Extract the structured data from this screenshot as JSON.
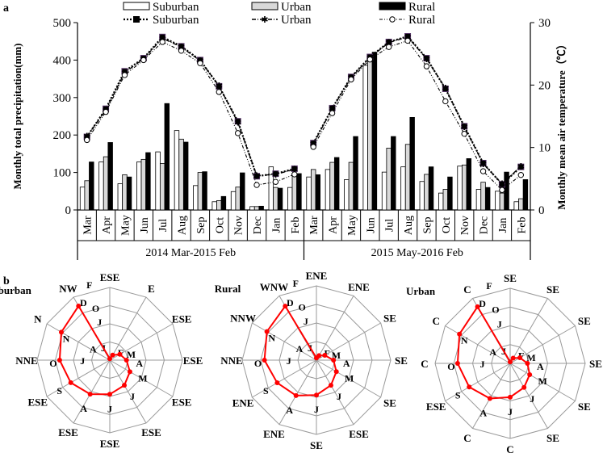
{
  "panel_labels": {
    "a": "a",
    "b": "b"
  },
  "chart_data": [
    {
      "type": "bar+line",
      "panel": "a",
      "categories": [
        "Mar",
        "Apr",
        "May",
        "Jun",
        "Jul",
        "Aug",
        "Sep",
        "Oct",
        "Nov",
        "Dec",
        "Jan",
        "Feb",
        "Mar",
        "Apr",
        "May",
        "Jun",
        "Jul",
        "Aug",
        "Sep",
        "Oct",
        "Nov",
        "Dec",
        "Jan",
        "Feb"
      ],
      "period_labels": [
        "2014 Mar-2015 Feb",
        "2015 May-2016 Feb"
      ],
      "ylabel": "Monthly  total precipitation(mm)",
      "y2label": "Monthly  mean air temperature（℃）",
      "ylim": [
        0,
        500
      ],
      "yticks": [
        0,
        100,
        200,
        300,
        400,
        500
      ],
      "y2lim": [
        0,
        30
      ],
      "y2ticks": [
        0,
        10,
        20,
        30
      ],
      "legend_position": "top",
      "bar_series": [
        {
          "name": "Suburban",
          "color": "#ffffff",
          "values": [
            61,
            128,
            70,
            128,
            155,
            212,
            65,
            22,
            49,
            9,
            115,
            60,
            88,
            108,
            81,
            386,
            101,
            115,
            76,
            45,
            117,
            55,
            50,
            22
          ]
        },
        {
          "name": "Urban",
          "color": "#d9d9d9",
          "values": [
            78,
            142,
            94,
            135,
            124,
            189,
            100,
            25,
            61,
            9,
            60,
            96,
            108,
            127,
            127,
            396,
            165,
            175,
            95,
            55,
            120,
            74,
            45,
            30
          ]
        },
        {
          "name": "Rural",
          "color": "#000000",
          "values": [
            128,
            180,
            88,
            153,
            284,
            181,
            102,
            36,
            99,
            10,
            58,
            97,
            94,
            140,
            196,
            421,
            196,
            247,
            115,
            88,
            137,
            60,
            101,
            81
          ]
        }
      ],
      "line_series": [
        {
          "name": "Suburban",
          "marker": "square",
          "values": [
            11.7,
            16.2,
            22.2,
            24.3,
            27.7,
            26.2,
            24.0,
            19.8,
            14.2,
            5.4,
            5.8,
            6.6,
            10.7,
            16.3,
            21.3,
            24.5,
            26.9,
            27.8,
            24.3,
            19.4,
            13.4,
            7.5,
            4.1,
            6.9
          ]
        },
        {
          "name": "Urban",
          "marker": "asterisk",
          "values": [
            11.8,
            16.0,
            22.0,
            24.2,
            27.5,
            26.1,
            23.9,
            19.9,
            14.0,
            5.5,
            5.7,
            6.5,
            10.6,
            16.2,
            21.2,
            24.4,
            26.8,
            27.7,
            24.2,
            19.5,
            13.3,
            7.4,
            4.2,
            7.0
          ]
        },
        {
          "name": "Rural",
          "marker": "circle",
          "values": [
            11.2,
            15.7,
            21.6,
            24.0,
            26.9,
            25.5,
            23.5,
            18.9,
            12.3,
            4.0,
            4.5,
            5.7,
            10.1,
            15.5,
            20.9,
            24.1,
            26.1,
            27.1,
            23.0,
            17.4,
            12.2,
            6.2,
            3.2,
            5.6
          ]
        }
      ]
    },
    {
      "type": "radar",
      "panel": "b",
      "spoke_labels": [
        "J",
        "F",
        "M",
        "A",
        "M",
        "J",
        "J",
        "A",
        "S",
        "O",
        "N",
        "D"
      ],
      "extra_labels": [
        "J",
        "A",
        "J",
        "O",
        "F"
      ],
      "rings": 4,
      "line_color": "#ff0000",
      "plots": [
        {
          "name": "Suburban",
          "values": [
            0.02,
            0.08,
            0.16,
            0.23,
            0.32,
            0.4,
            0.47,
            0.54,
            0.62,
            0.69,
            0.77,
            0.86
          ],
          "directions": [
            "ESE",
            "E",
            "ESE",
            "ESE",
            "ESE",
            "ESE",
            "ESE",
            "ESE",
            "ESE",
            "NNE",
            "N",
            "NW"
          ]
        },
        {
          "name": "Rural",
          "values": [
            0.03,
            0.07,
            0.13,
            0.23,
            0.31,
            0.39,
            0.47,
            0.55,
            0.61,
            0.7,
            0.77,
            0.84
          ],
          "directions": [
            "ENE",
            "ENE",
            "SE",
            "SE",
            "SE",
            "ESE",
            "SE",
            "ENE",
            "ENE",
            "NNE",
            "NNW",
            "WNW"
          ]
        },
        {
          "name": "Urban",
          "values": [
            0.02,
            0.08,
            0.15,
            0.23,
            0.3,
            0.37,
            0.45,
            0.54,
            0.63,
            0.7,
            0.78,
            0.87
          ],
          "directions": [
            "SE",
            "SE",
            "SE",
            "SE",
            "SE",
            "SE",
            "C",
            "C",
            "ESE",
            "C",
            "C",
            "C"
          ]
        }
      ]
    }
  ]
}
